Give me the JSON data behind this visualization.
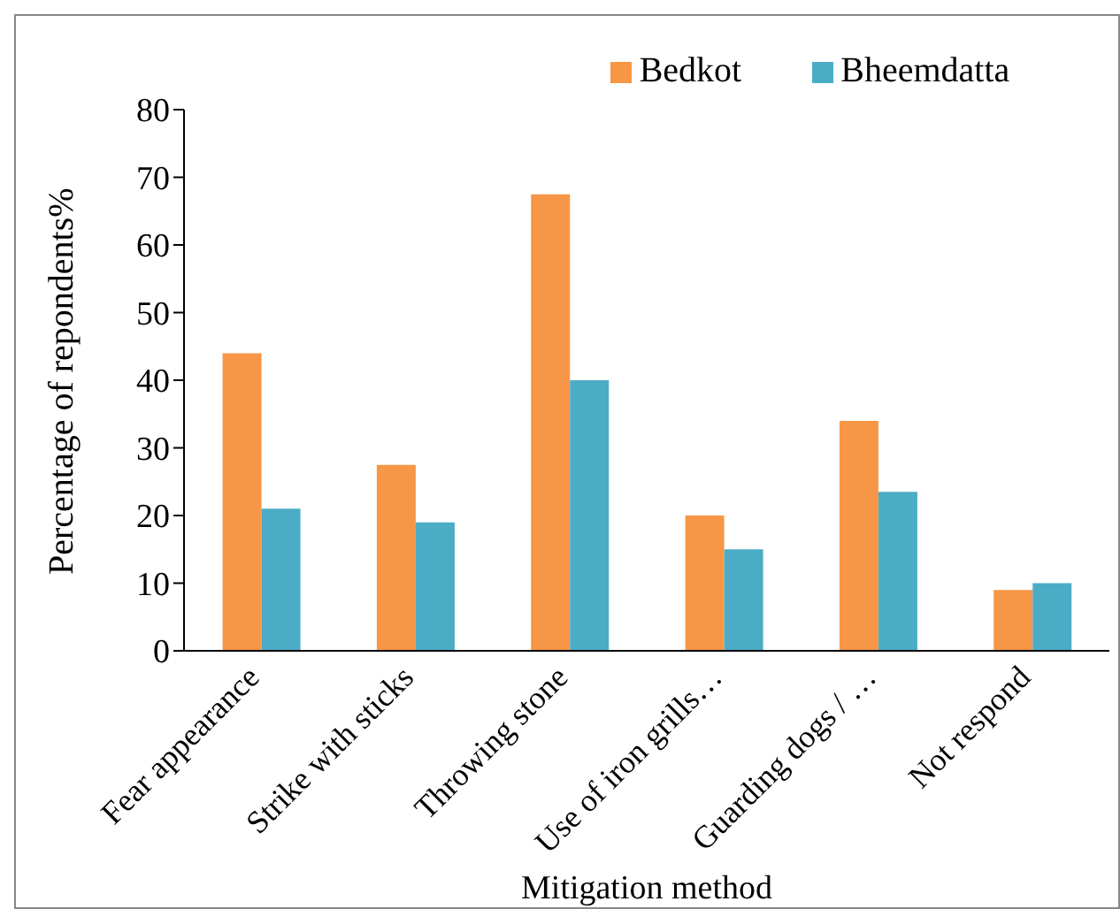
{
  "chart_data": {
    "type": "bar",
    "xlabel": "Mitigation method",
    "ylabel": "Percentage of repondents%",
    "categories": [
      "Fear appearance",
      "Strike with sticks",
      "Throwing stone",
      "Use of iron grills…",
      "Guarding dogs / …",
      "Not  respond"
    ],
    "series": [
      {
        "name": "Bedkot",
        "color": "#f79646",
        "values": [
          44,
          27.5,
          67.5,
          20,
          34,
          9
        ]
      },
      {
        "name": "Bheemdatta",
        "color": "#4bacc6",
        "values": [
          21,
          19,
          40,
          15,
          23.5,
          10
        ]
      }
    ],
    "ylim": [
      0,
      80
    ],
    "yticks": [
      0,
      10,
      20,
      30,
      40,
      50,
      60,
      70,
      80
    ],
    "grid": false,
    "legend": "top"
  }
}
